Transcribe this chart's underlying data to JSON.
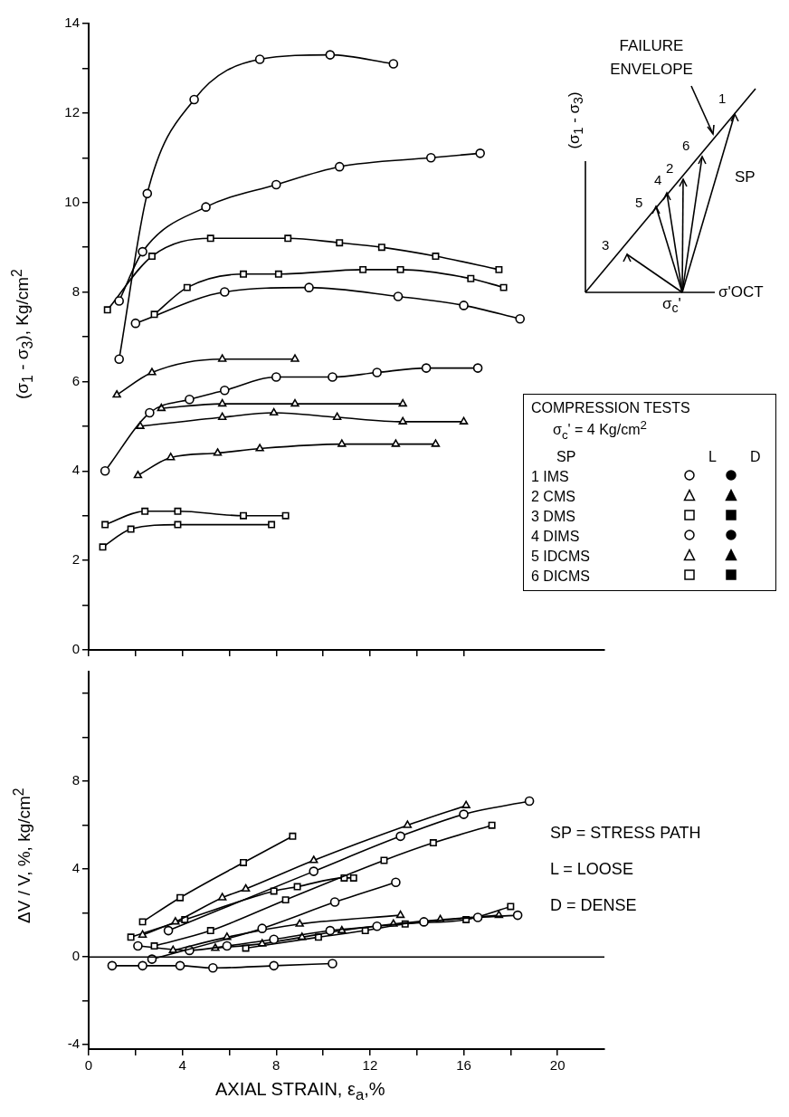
{
  "chart_data": [
    {
      "type": "line",
      "ylabel": "(σ$_{1}$ - σ$_{3}$), Kg/cm$^{2}$",
      "xlim": [
        0,
        22
      ],
      "ylim": [
        0,
        14
      ],
      "tick_labels": "y",
      "xticks": [
        {
          "value": 0,
          "label": null
        },
        {
          "value": 2,
          "label": null
        },
        {
          "value": 4,
          "label": null
        },
        {
          "value": 6,
          "label": null
        },
        {
          "value": 8,
          "label": null
        },
        {
          "value": 10,
          "label": null
        },
        {
          "value": 12,
          "label": null
        },
        {
          "value": 14,
          "label": null
        },
        {
          "value": 16,
          "label": null
        }
      ],
      "yticks": [
        0,
        {
          "value": 1,
          "label": null
        },
        2,
        {
          "value": 3,
          "label": null
        },
        4,
        {
          "value": 5,
          "label": null
        },
        6,
        {
          "value": 7,
          "label": null
        },
        8,
        {
          "value": 9,
          "label": null
        },
        10,
        {
          "value": 11,
          "label": null
        },
        12,
        {
          "value": 13,
          "label": null
        },
        14
      ],
      "series": [
        {
          "color": "#000000",
          "marker": "circle",
          "x": [
            1.3,
            2.5,
            4.5,
            7.3,
            10.3,
            13.0
          ],
          "values": [
            6.5,
            10.2,
            12.3,
            13.2,
            13.3,
            13.1
          ]
        },
        {
          "color": "#000000",
          "marker": "circle",
          "x": [
            1.3,
            2.3,
            5.0,
            8.0,
            10.7,
            14.6,
            16.7
          ],
          "values": [
            7.8,
            8.9,
            9.9,
            10.4,
            10.8,
            11.0,
            11.1
          ]
        },
        {
          "color": "#000000",
          "marker": "square",
          "x": [
            0.8,
            2.7,
            5.2,
            8.5,
            10.7,
            12.5,
            14.8,
            17.5
          ],
          "values": [
            7.6,
            8.8,
            9.2,
            9.2,
            9.1,
            9.0,
            8.8,
            8.5
          ]
        },
        {
          "color": "#000000",
          "marker": "square",
          "x": [
            2.8,
            4.2,
            6.6,
            8.1,
            11.7,
            13.3,
            16.3,
            17.7
          ],
          "values": [
            7.5,
            8.1,
            8.4,
            8.4,
            8.5,
            8.5,
            8.3,
            8.1
          ]
        },
        {
          "color": "#000000",
          "marker": "circle",
          "x": [
            2.0,
            5.8,
            9.4,
            13.2,
            16.0,
            18.4
          ],
          "values": [
            7.3,
            8.0,
            8.1,
            7.9,
            7.7,
            7.4
          ]
        },
        {
          "color": "#000000",
          "marker": "triangle",
          "x": [
            1.2,
            2.7,
            5.7,
            8.8
          ],
          "values": [
            5.7,
            6.2,
            6.5,
            6.5
          ]
        },
        {
          "color": "#000000",
          "marker": "circle",
          "x": [
            0.7,
            2.6,
            4.3,
            5.8,
            8.0,
            10.4,
            12.3,
            14.4,
            16.6
          ],
          "values": [
            4.0,
            5.3,
            5.6,
            5.8,
            6.1,
            6.1,
            6.2,
            6.3,
            6.3
          ]
        },
        {
          "color": "#000000",
          "marker": "triangle",
          "x": [
            3.1,
            5.7,
            8.8,
            13.4
          ],
          "values": [
            5.4,
            5.5,
            5.5,
            5.5
          ]
        },
        {
          "color": "#000000",
          "marker": "triangle",
          "x": [
            2.2,
            5.7,
            7.9,
            10.6,
            13.4,
            16.0
          ],
          "values": [
            5.0,
            5.2,
            5.3,
            5.2,
            5.1,
            5.1
          ]
        },
        {
          "color": "#000000",
          "marker": "triangle",
          "x": [
            2.1,
            3.5,
            5.5,
            7.3,
            10.8,
            13.1,
            14.8
          ],
          "values": [
            3.9,
            4.3,
            4.4,
            4.5,
            4.6,
            4.6,
            4.6
          ]
        },
        {
          "color": "#000000",
          "marker": "square",
          "x": [
            0.7,
            2.4,
            3.8,
            6.6,
            8.4
          ],
          "values": [
            2.8,
            3.1,
            3.1,
            3.0,
            3.0
          ]
        },
        {
          "color": "#000000",
          "marker": "square",
          "x": [
            0.6,
            1.8,
            3.8,
            7.8
          ],
          "values": [
            2.3,
            2.7,
            2.8,
            2.8
          ]
        }
      ],
      "annotations": [
        "FAILURE ENVELOPE",
        "SP",
        "(σ$_{1}$ - σ$_{3}$)",
        "σ'OCT",
        "σ$_{c}$'",
        "1",
        "2",
        "3",
        "4",
        "5",
        "6",
        "COMPRESSION TESTS",
        "σ$_{c}$' = 4 Kg/cm$^{2}$",
        "SP",
        "L",
        "D",
        "1 IMS",
        "2 CMS",
        "3 DMS",
        "4 DIMS",
        "5 IDCMS",
        "6 DICMS"
      ]
    },
    {
      "type": "line",
      "xlabel": "AXIAL STRAIN, ε$_{a}$,%",
      "ylabel": "ΔV / V, %, kg/cm$^{2}$",
      "xlim": [
        0,
        22
      ],
      "ylim": [
        -4.2,
        13
      ],
      "xticks": [
        0,
        {
          "value": 2,
          "label": null
        },
        4,
        {
          "value": 6,
          "label": null
        },
        8,
        {
          "value": 10,
          "label": null
        },
        12,
        {
          "value": 14,
          "label": null
        },
        16,
        {
          "value": 18,
          "label": null
        },
        20
      ],
      "yticks": [
        -4,
        {
          "value": -2,
          "label": null
        },
        0,
        {
          "value": 2,
          "label": null
        },
        4,
        {
          "value": 6,
          "label": null
        },
        8,
        {
          "value": 10,
          "label": null
        },
        {
          "value": 12,
          "label": null
        }
      ],
      "ref_lines": [
        {
          "axis": "y",
          "value": 0,
          "color": "#000000"
        }
      ],
      "series": [
        {
          "color": "#000000",
          "marker": "square",
          "x": [
            2.3,
            3.9,
            6.6,
            8.7
          ],
          "values": [
            1.6,
            2.7,
            4.3,
            5.5
          ]
        },
        {
          "color": "#000000",
          "marker": "triangle",
          "x": [
            2.3,
            3.7,
            5.7,
            6.7,
            9.6,
            13.6,
            16.1
          ],
          "values": [
            1.0,
            1.6,
            2.7,
            3.1,
            4.4,
            6.0,
            6.9
          ]
        },
        {
          "color": "#000000",
          "marker": "circle",
          "x": [
            3.4,
            9.6,
            13.3,
            16.0,
            18.8
          ],
          "values": [
            1.2,
            3.9,
            5.5,
            6.5,
            7.1
          ]
        },
        {
          "color": "#000000",
          "marker": "square",
          "x": [
            2.8,
            5.2,
            8.4,
            12.6,
            14.7,
            17.2
          ],
          "values": [
            0.5,
            1.2,
            2.6,
            4.4,
            5.2,
            6.0
          ]
        },
        {
          "color": "#000000",
          "marker": "square",
          "x": [
            1.8,
            4.1,
            7.9,
            8.9,
            10.9,
            11.3
          ],
          "values": [
            0.9,
            1.7,
            3.0,
            3.2,
            3.6,
            3.6
          ]
        },
        {
          "color": "#000000",
          "marker": "circle",
          "x": [
            2.7,
            7.4,
            10.5,
            13.1
          ],
          "values": [
            -0.1,
            1.3,
            2.5,
            3.4
          ]
        },
        {
          "color": "#000000",
          "marker": "triangle",
          "x": [
            3.6,
            5.9,
            9.0,
            13.3
          ],
          "values": [
            0.3,
            0.9,
            1.5,
            1.9
          ]
        },
        {
          "color": "#000000",
          "marker": "circle",
          "x": [
            2.1,
            4.3,
            5.9,
            7.9,
            10.3,
            12.3,
            14.3,
            16.6,
            18.3
          ],
          "values": [
            0.5,
            0.3,
            0.5,
            0.8,
            1.2,
            1.4,
            1.6,
            1.8,
            1.9
          ]
        },
        {
          "color": "#000000",
          "marker": "triangle",
          "x": [
            5.4,
            7.4,
            9.1,
            10.8,
            13.0,
            15.0,
            17.5
          ],
          "values": [
            0.4,
            0.6,
            0.9,
            1.2,
            1.5,
            1.7,
            1.9
          ]
        },
        {
          "color": "#000000",
          "marker": "square",
          "x": [
            6.7,
            9.8,
            11.8,
            13.5,
            16.1,
            18.0
          ],
          "values": [
            0.4,
            0.9,
            1.2,
            1.5,
            1.7,
            2.3
          ]
        },
        {
          "color": "#000000",
          "marker": "circle",
          "x": [
            1.0,
            2.3,
            3.9,
            5.3,
            7.9,
            10.4
          ],
          "values": [
            -0.4,
            -0.4,
            -0.4,
            -0.5,
            -0.4,
            -0.3
          ]
        }
      ],
      "annotations": [
        "SP = STRESS PATH",
        "L = LOOSE",
        "D = DENSE"
      ]
    }
  ]
}
